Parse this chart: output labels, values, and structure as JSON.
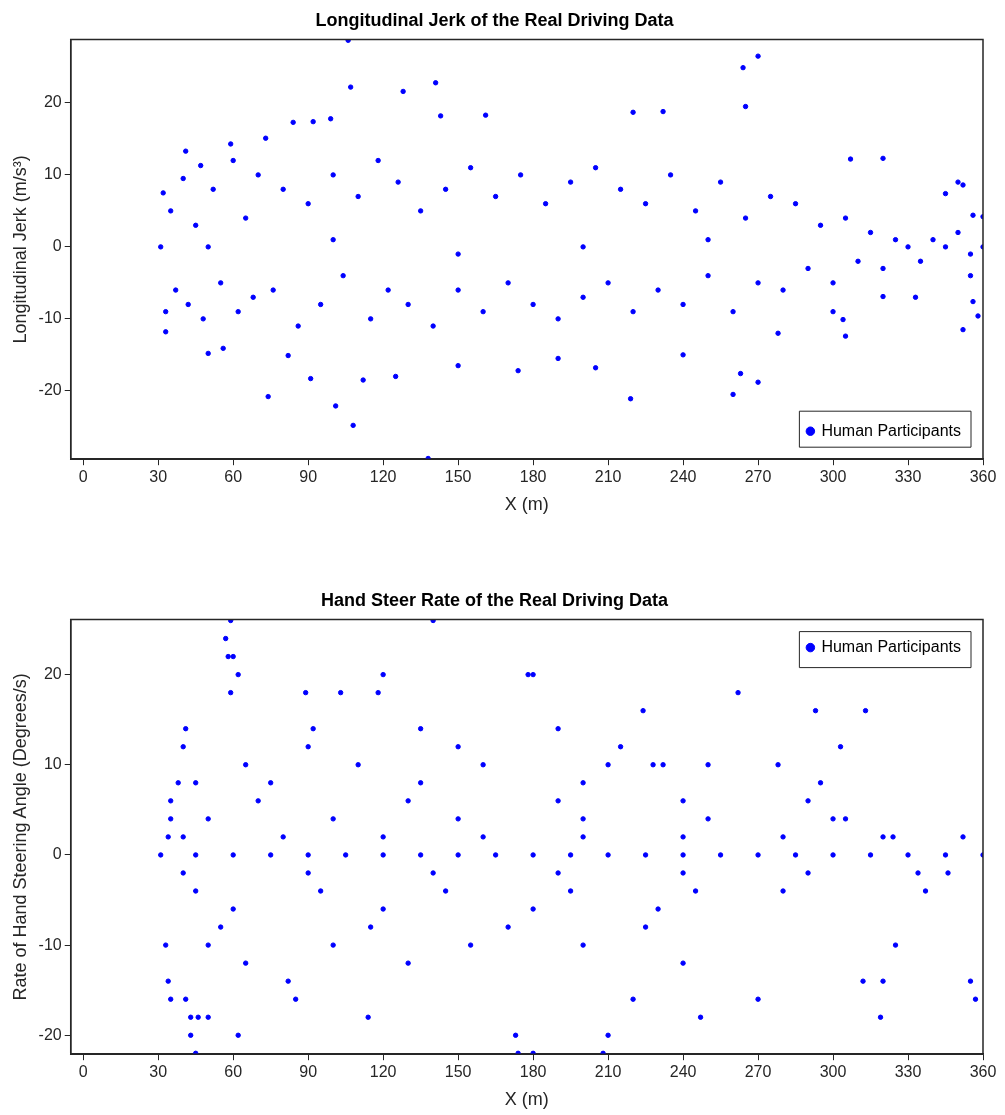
{
  "chart_data": [
    {
      "type": "scatter",
      "title": "Longitudinal Jerk of the Real Driving Data",
      "xlabel": "X (m)",
      "ylabel": "Longitudinal Jerk (m/s³)",
      "xlim": [
        -5,
        360
      ],
      "xticks": [
        0,
        30,
        60,
        90,
        120,
        150,
        180,
        210,
        240,
        270,
        300,
        330,
        360
      ],
      "ylim": [
        -29.5,
        28.8
      ],
      "yticks": [
        -20,
        -10,
        0,
        10,
        20
      ],
      "legend": "bottom right",
      "marker": "circle",
      "series": [
        {
          "name": "Human Participants",
          "color": "#0000ff",
          "x": [
            106,
            107,
            128,
            141,
            264,
            270,
            265,
            220,
            232,
            161,
            143,
            84,
            99,
            92,
            73,
            59,
            47,
            41,
            307,
            320,
            350,
            352,
            345,
            356,
            360,
            355,
            356,
            358,
            352,
            305,
            304,
            270,
            263,
            260,
            219,
            205,
            174,
            138,
            108,
            101,
            74,
            91,
            112,
            56,
            50,
            33,
            82,
            333,
            320,
            300,
            278,
            240,
            190,
            150,
            125,
            31,
            32,
            33,
            35,
            37,
            40,
            42,
            45,
            48,
            52,
            55,
            60,
            62,
            65,
            68,
            70,
            76,
            80,
            86,
            90,
            95,
            100,
            104,
            110,
            115,
            118,
            122,
            126,
            130,
            135,
            140,
            145,
            150,
            155,
            160,
            165,
            170,
            175,
            180,
            185,
            190,
            195,
            200,
            205,
            210,
            215,
            220,
            225,
            230,
            235,
            240,
            245,
            250,
            255,
            260,
            265,
            270,
            275,
            280,
            285,
            290,
            295,
            300,
            305,
            310,
            315,
            320,
            325,
            330,
            335,
            340,
            345,
            350,
            355,
            360,
            50,
            100,
            150,
            200,
            250
          ],
          "values": [
            28.7,
            22.2,
            21.6,
            22.8,
            24.9,
            26.5,
            19.5,
            18.7,
            18.8,
            18.3,
            18.2,
            17.3,
            17.8,
            17.4,
            15.1,
            14.3,
            11.3,
            13.3,
            12.2,
            12.3,
            9.0,
            8.6,
            7.4,
            4.4,
            4.2,
            -4.0,
            -7.6,
            -9.6,
            -11.5,
            -12.4,
            -10.1,
            -18.8,
            -17.6,
            -20.5,
            -21.1,
            -16.8,
            -17.2,
            -29.4,
            -24.8,
            -22.1,
            -20.8,
            -18.3,
            -18.5,
            -14.1,
            -14.8,
            -11.8,
            -15.1,
            -7.0,
            -6.9,
            -9.0,
            -12.0,
            -15.0,
            -15.5,
            -16.5,
            -18.0,
            0,
            7.5,
            -9,
            5,
            -6,
            9.5,
            -8,
            3,
            -10,
            8,
            -5,
            12,
            -9,
            4,
            -7,
            10,
            -6,
            8,
            -11,
            6,
            -8,
            10,
            -4,
            7,
            -10,
            12,
            -6,
            9,
            -8,
            5,
            -11,
            8,
            -6,
            11,
            -9,
            7,
            -5,
            10,
            -8,
            6,
            -10,
            9,
            -7,
            11,
            -5,
            8,
            -9,
            6,
            -6,
            10,
            -8,
            5,
            -4,
            9,
            -9,
            4,
            -5,
            7,
            -6,
            6,
            -3,
            3,
            -5,
            4,
            -2,
            2,
            -3,
            1,
            0,
            -2,
            1,
            0,
            2,
            -1,
            0,
            0,
            1,
            -1,
            0,
            1
          ]
        }
      ]
    },
    {
      "type": "scatter",
      "title": "Hand Steer Rate of the Real Driving Data",
      "xlabel": "X (m)",
      "ylabel": "Rate of Hand Steering Angle (Degrees/s)",
      "xlim": [
        -5,
        360
      ],
      "xticks": [
        0,
        30,
        60,
        90,
        120,
        150,
        180,
        210,
        240,
        270,
        300,
        330,
        360
      ],
      "ylim": [
        -22.1,
        26.1
      ],
      "yticks": [
        -20,
        -10,
        0,
        10,
        20
      ],
      "legend": "top right",
      "marker": "circle",
      "series": [
        {
          "name": "Human Participants",
          "color": "#0000ff",
          "x": [
            31,
            45,
            60,
            75,
            90,
            105,
            120,
            135,
            150,
            165,
            180,
            195,
            210,
            225,
            240,
            255,
            270,
            285,
            300,
            315,
            330,
            345,
            360,
            59,
            57,
            58,
            60,
            62,
            140,
            59,
            89,
            103,
            118,
            178,
            180,
            120,
            262,
            293,
            313,
            224,
            303,
            35,
            41,
            40,
            45,
            38,
            34,
            35,
            33,
            34,
            35,
            41,
            43,
            43,
            45,
            46,
            50,
            62,
            82,
            85,
            114,
            173,
            174,
            180,
            208,
            210,
            220,
            247,
            270,
            319,
            320,
            312,
            325,
            355,
            357,
            346,
            337,
            334,
            352,
            324,
            290,
            300,
            305,
            295,
            278,
            250,
            228,
            232,
            40,
            80,
            120,
            160,
            200,
            240,
            280,
            320,
            40,
            90,
            140,
            190,
            240,
            290,
            50,
            100,
            150,
            200,
            250,
            45,
            95,
            145,
            195,
            245,
            280,
            70,
            130,
            190,
            240,
            60,
            120,
            180,
            230,
            75,
            135,
            200,
            55,
            115,
            170,
            225,
            65,
            110,
            160,
            210,
            50,
            100,
            155,
            200,
            90,
            150,
            215,
            65,
            130,
            240,
            92,
            135,
            190
          ],
          "values": [
            0,
            0,
            0,
            0,
            0,
            0,
            0,
            0,
            0,
            0,
            0,
            0,
            0,
            0,
            0,
            0,
            0,
            0,
            0,
            0,
            0,
            0,
            0,
            26,
            24,
            22,
            22,
            20,
            26,
            18,
            18,
            18,
            18,
            20,
            20,
            20,
            18,
            16,
            16,
            16,
            12,
            6,
            14,
            12,
            8,
            8,
            2,
            4,
            -10,
            -14,
            -16,
            -16,
            -18,
            -20,
            -22,
            -18,
            -18,
            -20,
            -14,
            -16,
            -18,
            -20,
            -22,
            -22,
            -22,
            -20,
            -16,
            -18,
            -16,
            -18,
            -14,
            -14,
            -10,
            -14,
            -16,
            -2,
            -4,
            -2,
            2,
            2,
            6,
            4,
            4,
            8,
            10,
            10,
            10,
            10,
            2,
            2,
            2,
            2,
            2,
            2,
            2,
            2,
            -2,
            -2,
            -2,
            -2,
            -2,
            -2,
            4,
            4,
            4,
            4,
            4,
            -4,
            -4,
            -4,
            -4,
            -4,
            -4,
            6,
            6,
            6,
            6,
            -6,
            -6,
            -6,
            -6,
            8,
            8,
            8,
            -8,
            -8,
            -8,
            -8,
            10,
            10,
            10,
            10,
            -10,
            -10,
            -10,
            -10,
            12,
            12,
            12,
            -12,
            -12,
            -12,
            14,
            14,
            14
          ]
        }
      ]
    }
  ]
}
